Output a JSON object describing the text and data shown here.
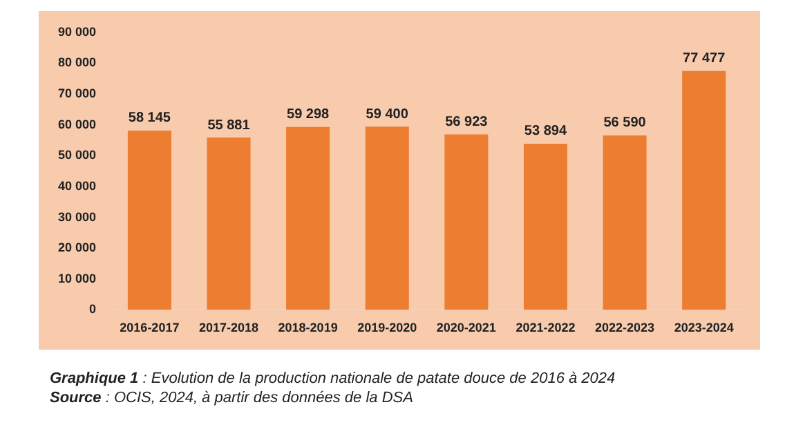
{
  "chart_data": {
    "type": "bar",
    "categories": [
      "2016-2017",
      "2017-2018",
      "2018-2019",
      "2019-2020",
      "2020-2021",
      "2021-2022",
      "2022-2023",
      "2023-2024"
    ],
    "values": [
      58145,
      55881,
      59298,
      59400,
      56923,
      53894,
      56590,
      77477
    ],
    "value_labels": [
      "58 145",
      "55 881",
      "59 298",
      "59 400",
      "56 923",
      "53 894",
      "56 590",
      "77 477"
    ],
    "color": "#ed7d31",
    "ylim": [
      0,
      90000
    ],
    "yticks": [
      {
        "value": 0,
        "label": "0"
      },
      {
        "value": 10000,
        "label": "10 000"
      },
      {
        "value": 20000,
        "label": "20 000"
      },
      {
        "value": 30000,
        "label": "30 000"
      },
      {
        "value": 40000,
        "label": "40 000"
      },
      {
        "value": 50000,
        "label": "50 000"
      },
      {
        "value": 60000,
        "label": "60 000"
      },
      {
        "value": 70000,
        "label": "70 000"
      },
      {
        "value": 80000,
        "label": "80 000"
      },
      {
        "value": 90000,
        "label": "90 000"
      }
    ],
    "grid": false,
    "legend": false,
    "annotations": [
      "Graphique 1  : Evolution de la production nationale de patate douce de 2016 à 2024",
      "Source : OCIS, 2024, à partir des données de la DSA"
    ]
  }
}
